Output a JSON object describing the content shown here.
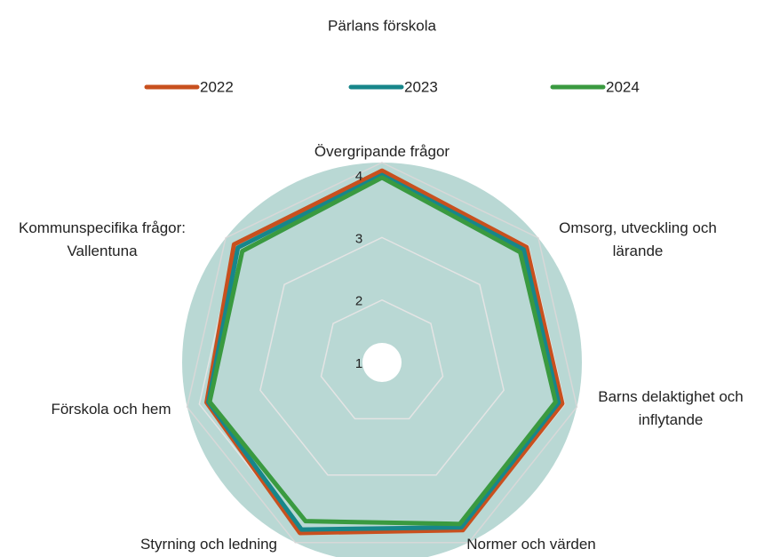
{
  "chart_data": {
    "type": "radar",
    "title": "Pärlans förskola",
    "categories": [
      "Övergripande frågor",
      "Omsorg, utveckling och\nlärande",
      "Barns delaktighet och\ninflytande",
      "Normer och värden",
      "Styrning och ledning",
      "Förskola och hem",
      "Kommunspecifika frågor:\nVallentuna"
    ],
    "series": [
      {
        "name": "2022",
        "color": "#c8501e",
        "values": [
          4.07,
          3.96,
          3.96,
          3.98,
          4.03,
          3.88,
          4.03
        ]
      },
      {
        "name": "2023",
        "color": "#17868a",
        "values": [
          4.0,
          3.9,
          3.9,
          3.93,
          3.97,
          3.85,
          3.95
        ]
      },
      {
        "name": "2024",
        "color": "#3a9a40",
        "values": [
          3.96,
          3.83,
          3.85,
          3.87,
          3.82,
          3.83,
          3.86
        ]
      }
    ],
    "ylim": [
      1,
      4.2
    ],
    "yticks": [
      1,
      2,
      3,
      4
    ],
    "grid": true,
    "legend": "top"
  }
}
